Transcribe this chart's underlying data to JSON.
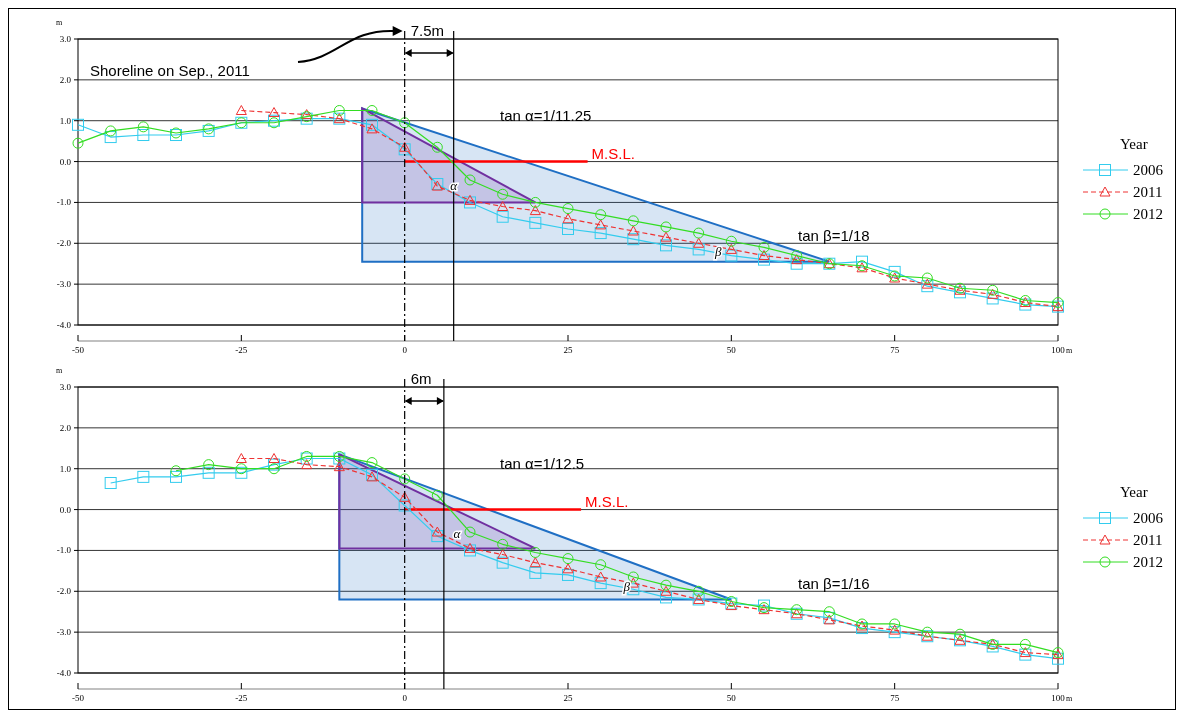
{
  "chart_data": [
    {
      "type": "line",
      "xlabel": "m",
      "ylabel": "m",
      "xlim": [
        -50,
        100
      ],
      "ylim": [
        -4,
        3
      ],
      "xticks": [
        -50,
        -25,
        0,
        25,
        50,
        75,
        100
      ],
      "yticks": [
        {
          "value": 3,
          "label": "3.0"
        },
        {
          "value": 2,
          "label": "2.0"
        },
        {
          "value": 1,
          "label": "1.0"
        },
        {
          "value": 0,
          "label": "0.0"
        },
        {
          "value": -1,
          "label": "-1.0"
        },
        {
          "value": -2,
          "label": "-2.0"
        },
        {
          "value": -3,
          "label": "-3.0"
        },
        {
          "value": -4,
          "label": "-4.0"
        }
      ],
      "grid": "y",
      "legend": "right",
      "legend_title": "Year",
      "ref_lines": [
        {
          "axis": "x",
          "value": 0,
          "line_style": "dashdot",
          "color": "#000000"
        },
        {
          "axis": "x",
          "value": 7.5,
          "line_style": "solid",
          "color": "#000000"
        }
      ],
      "annotations": [
        "7.5m",
        "Shoreline on Sep., 2011",
        "tan α=1/11.25",
        "tan β=1/18",
        {
          "text": "α",
          "x": 7.5,
          "y": -0.7
        },
        {
          "text": "β",
          "x": 48,
          "y": -2.3
        }
      ],
      "series": [
        {
          "type": "area",
          "color": "#1f6fc4",
          "x": [
            -6.5,
            65,
            -6.5
          ],
          "values": [
            1.3,
            -2.45,
            -2.45
          ]
        },
        {
          "type": "area",
          "color": "#7030a0",
          "x": [
            -6.5,
            20,
            -6.5
          ],
          "values": [
            1.3,
            -1.0,
            -1.0
          ]
        },
        {
          "name": "M.S.L.",
          "color": "#ff0000",
          "marker": "none",
          "line_style": "solid",
          "x": [
            0,
            28
          ],
          "values": [
            0,
            0
          ]
        },
        {
          "name": "2006",
          "color": "#33ccee",
          "marker": "square",
          "line_style": "solid",
          "x": [
            -50,
            -45,
            -40,
            -35,
            -30,
            -25,
            -20,
            -15,
            -10,
            -5,
            0,
            5,
            10,
            15,
            20,
            25,
            30,
            35,
            40,
            45,
            50,
            55,
            60,
            65,
            70,
            75,
            80,
            85,
            90,
            95,
            100
          ],
          "values": [
            0.9,
            0.6,
            0.65,
            0.65,
            0.75,
            0.95,
            1.0,
            1.05,
            1.05,
            0.9,
            0.3,
            -0.55,
            -1.0,
            -1.35,
            -1.5,
            -1.65,
            -1.75,
            -1.9,
            -2.05,
            -2.15,
            -2.3,
            -2.4,
            -2.5,
            -2.5,
            -2.45,
            -2.7,
            -3.05,
            -3.2,
            -3.35,
            -3.5,
            -3.55
          ]
        },
        {
          "name": "2011",
          "color": "#ee3333",
          "marker": "triangle",
          "line_style": "dashed",
          "x": [
            -25,
            -20,
            -15,
            -10,
            -5,
            0,
            5,
            10,
            15,
            20,
            25,
            30,
            35,
            40,
            45,
            50,
            55,
            60,
            65,
            70,
            75,
            80,
            85,
            90,
            95,
            100
          ],
          "values": [
            1.25,
            1.2,
            1.15,
            1.05,
            0.8,
            0.35,
            -0.6,
            -0.95,
            -1.1,
            -1.2,
            -1.4,
            -1.55,
            -1.7,
            -1.85,
            -2.0,
            -2.15,
            -2.3,
            -2.4,
            -2.5,
            -2.6,
            -2.85,
            -3.0,
            -3.15,
            -3.25,
            -3.45,
            -3.55
          ]
        },
        {
          "name": "2012",
          "color": "#33dd22",
          "marker": "circle",
          "line_style": "solid",
          "x": [
            -50,
            -45,
            -40,
            -35,
            -30,
            -25,
            -20,
            -15,
            -10,
            -5,
            0,
            5,
            10,
            15,
            20,
            25,
            30,
            35,
            40,
            45,
            50,
            55,
            60,
            65,
            70,
            75,
            80,
            85,
            90,
            95,
            100
          ],
          "values": [
            0.45,
            0.75,
            0.85,
            0.7,
            0.8,
            0.95,
            0.95,
            1.1,
            1.25,
            1.25,
            0.95,
            0.35,
            -0.45,
            -0.8,
            -1.0,
            -1.15,
            -1.3,
            -1.45,
            -1.6,
            -1.75,
            -1.95,
            -2.1,
            -2.3,
            -2.5,
            -2.55,
            -2.8,
            -2.85,
            -3.1,
            -3.15,
            -3.4,
            -3.45
          ]
        }
      ]
    },
    {
      "type": "line",
      "xlabel": "m",
      "ylabel": "m",
      "xlim": [
        -50,
        100
      ],
      "ylim": [
        -4,
        3
      ],
      "xticks": [
        -50,
        -25,
        0,
        25,
        50,
        75,
        100
      ],
      "yticks": [
        {
          "value": 3,
          "label": "3.0"
        },
        {
          "value": 2,
          "label": "2.0"
        },
        {
          "value": 1,
          "label": "1.0"
        },
        {
          "value": 0,
          "label": "0.0"
        },
        {
          "value": -1,
          "label": "-1.0"
        },
        {
          "value": -2,
          "label": "-2.0"
        },
        {
          "value": -3,
          "label": "-3.0"
        },
        {
          "value": -4,
          "label": "-4.0"
        }
      ],
      "grid": "y",
      "legend": "right",
      "legend_title": "Year",
      "ref_lines": [
        {
          "axis": "x",
          "value": 0,
          "line_style": "dashdot",
          "color": "#000000"
        },
        {
          "axis": "x",
          "value": 6,
          "line_style": "solid",
          "color": "#000000"
        }
      ],
      "annotations": [
        "6m",
        "tan α=1/12.5",
        "tan β=1/16",
        {
          "text": "α",
          "x": 8,
          "y": -0.7
        },
        {
          "text": "β",
          "x": 34,
          "y": -2.0
        }
      ],
      "series": [
        {
          "type": "area",
          "color": "#1f6fc4",
          "x": [
            -10,
            50,
            -10
          ],
          "values": [
            1.35,
            -2.2,
            -2.2
          ]
        },
        {
          "type": "area",
          "color": "#7030a0",
          "x": [
            -10,
            20,
            -10
          ],
          "values": [
            1.35,
            -0.95,
            -0.95
          ]
        },
        {
          "name": "M.S.L.",
          "color": "#ff0000",
          "marker": "none",
          "line_style": "solid",
          "x": [
            0,
            27
          ],
          "values": [
            0,
            0
          ]
        },
        {
          "name": "2006",
          "color": "#33ccee",
          "marker": "square",
          "line_style": "solid",
          "x": [
            -45,
            -40,
            -35,
            -30,
            -25,
            -20,
            -15,
            -10,
            -5,
            0,
            5,
            10,
            15,
            20,
            25,
            30,
            35,
            40,
            45,
            50,
            55,
            60,
            65,
            70,
            75,
            80,
            85,
            90,
            95,
            100
          ],
          "values": [
            0.65,
            0.8,
            0.8,
            0.9,
            0.9,
            1.1,
            1.25,
            1.25,
            0.85,
            0.1,
            -0.65,
            -1.0,
            -1.3,
            -1.55,
            -1.6,
            -1.8,
            -1.95,
            -2.15,
            -2.2,
            -2.3,
            -2.35,
            -2.55,
            -2.65,
            -2.9,
            -3.0,
            -3.1,
            -3.2,
            -3.35,
            -3.55,
            -3.65
          ]
        },
        {
          "name": "2011",
          "color": "#ee3333",
          "marker": "triangle",
          "line_style": "dashed",
          "x": [
            -25,
            -20,
            -15,
            -10,
            -5,
            0,
            5,
            10,
            15,
            20,
            25,
            30,
            35,
            40,
            45,
            50,
            55,
            60,
            65,
            70,
            75,
            80,
            85,
            90,
            95,
            100
          ],
          "values": [
            1.25,
            1.25,
            1.1,
            1.05,
            0.8,
            0.3,
            -0.55,
            -0.95,
            -1.1,
            -1.3,
            -1.45,
            -1.65,
            -1.8,
            -2.0,
            -2.2,
            -2.35,
            -2.45,
            -2.55,
            -2.7,
            -2.85,
            -2.95,
            -3.1,
            -3.2,
            -3.3,
            -3.5,
            -3.55
          ]
        },
        {
          "name": "2012",
          "color": "#33dd22",
          "marker": "circle",
          "line_style": "solid",
          "x": [
            -35,
            -30,
            -25,
            -20,
            -15,
            -10,
            -5,
            0,
            5,
            10,
            15,
            20,
            25,
            30,
            35,
            40,
            45,
            50,
            55,
            60,
            65,
            70,
            75,
            80,
            85,
            90,
            95,
            100
          ],
          "values": [
            0.95,
            1.1,
            1.0,
            1.0,
            1.3,
            1.3,
            1.15,
            0.75,
            0.35,
            -0.55,
            -0.85,
            -1.05,
            -1.2,
            -1.35,
            -1.65,
            -1.85,
            -2.0,
            -2.25,
            -2.4,
            -2.45,
            -2.5,
            -2.8,
            -2.8,
            -3.0,
            -3.05,
            -3.3,
            -3.3,
            -3.5
          ]
        }
      ]
    }
  ]
}
